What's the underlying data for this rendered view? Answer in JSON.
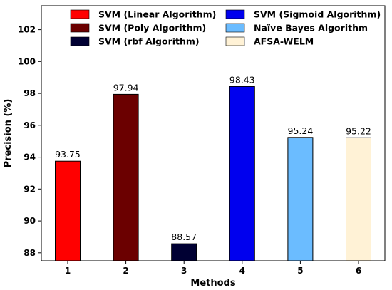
{
  "chart_data": {
    "type": "bar",
    "xlabel": "Methods",
    "ylabel": "Precision (%)",
    "categories": [
      "1",
      "2",
      "3",
      "4",
      "5",
      "6"
    ],
    "values": [
      93.75,
      97.94,
      88.57,
      98.43,
      95.24,
      95.22
    ],
    "value_labels": [
      "93.75",
      "97.94",
      "88.57",
      "98.43",
      "95.24",
      "95.22"
    ],
    "series_names": [
      "SVM (Linear Algorithm)",
      "SVM (Poly Algorithm)",
      "SVM (rbf Algorithm)",
      "SVM (Sigmoid Algorithm)",
      "Naïve Bayes Algorithm",
      "AFSA-WELM"
    ],
    "colors": [
      "#ff0000",
      "#6b0000",
      "#000033",
      "#0000ee",
      "#6bbcff",
      "#fff2d6"
    ],
    "ylim": [
      87.5,
      103.5
    ],
    "yticks": [
      88,
      90,
      92,
      94,
      96,
      98,
      100,
      102
    ],
    "grid": false,
    "legend_position": "top"
  }
}
